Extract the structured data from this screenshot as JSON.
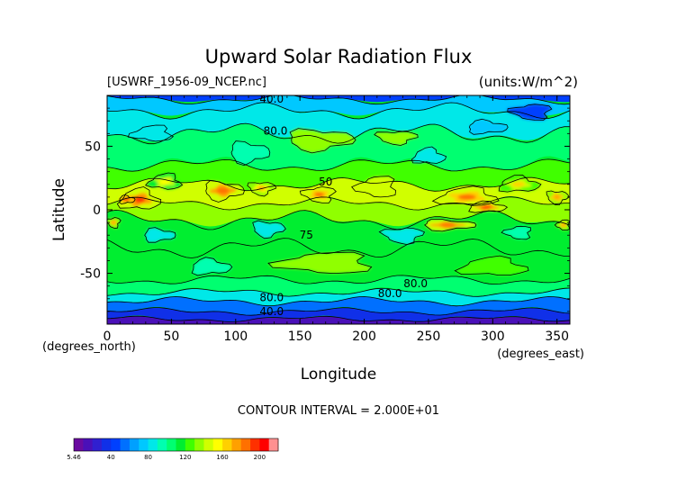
{
  "chart_data": {
    "type": "heatmap",
    "title": "Upward Solar Radiation Flux",
    "file_label": "[USWRF_1956-09_NCEP.nc]",
    "units_label": "(units:W/m^2)",
    "xlabel": "Longitude",
    "ylabel": "Latitude",
    "x_unit_label": "(degrees_east)",
    "y_unit_label": "(degrees_north)",
    "xlim": [
      0,
      360
    ],
    "ylim": [
      -90,
      90
    ],
    "x_ticks": [
      0,
      50,
      100,
      150,
      200,
      250,
      300,
      350
    ],
    "y_ticks": [
      -50,
      0,
      50
    ],
    "contour_interval_text": "CONTOUR INTERVAL = 2.000E+01",
    "contour_labels": [
      {
        "text": "40.0",
        "lon": 128,
        "lat": 87
      },
      {
        "text": "80.0",
        "lon": 131,
        "lat": 62
      },
      {
        "text": "50",
        "lon": 170,
        "lat": 22
      },
      {
        "text": "75",
        "lon": 155,
        "lat": -20
      },
      {
        "text": "80.0",
        "lon": 128,
        "lat": -69
      },
      {
        "text": "80.0",
        "lon": 220,
        "lat": -66
      },
      {
        "text": "80.0",
        "lon": 240,
        "lat": -58
      },
      {
        "text": "40.0",
        "lon": 128,
        "lat": -80
      }
    ],
    "colorbar": {
      "tick_labels": [
        "5.46",
        "40",
        "80",
        "120",
        "160",
        "200"
      ],
      "tick_values": [
        5.46,
        40,
        80,
        120,
        160,
        200
      ],
      "colors": [
        "#6a0aa0",
        "#4a10b8",
        "#3020d0",
        "#1030e8",
        "#0040ff",
        "#0070ff",
        "#00a0ff",
        "#00c8ff",
        "#00e8e8",
        "#00ffb0",
        "#00ff70",
        "#00ee30",
        "#40ff00",
        "#90ff00",
        "#d0ff00",
        "#ffff00",
        "#ffd000",
        "#ffa000",
        "#ff7000",
        "#ff3000",
        "#ff0000",
        "#ff9090"
      ]
    },
    "bands": [
      {
        "lat_from": 90,
        "lat_to": 87,
        "value": 40
      },
      {
        "lat_from": 87,
        "lat_to": 78,
        "value": 70
      },
      {
        "lat_from": 78,
        "lat_to": 60,
        "value": 85
      },
      {
        "lat_from": 60,
        "lat_to": 35,
        "value": 105
      },
      {
        "lat_from": 35,
        "lat_to": 20,
        "value": 120
      },
      {
        "lat_from": 20,
        "lat_to": 5,
        "value": 145
      },
      {
        "lat_from": 5,
        "lat_to": -8,
        "value": 135
      },
      {
        "lat_from": -8,
        "lat_to": -30,
        "value": 110
      },
      {
        "lat_from": -30,
        "lat_to": -55,
        "value": 115
      },
      {
        "lat_from": -55,
        "lat_to": -65,
        "value": 100
      },
      {
        "lat_from": -65,
        "lat_to": -72,
        "value": 80
      },
      {
        "lat_from": -72,
        "lat_to": -80,
        "value": 55
      },
      {
        "lat_from": -80,
        "lat_to": -86,
        "value": 30
      },
      {
        "lat_from": -86,
        "lat_to": -90,
        "value": 12
      }
    ],
    "blobs": [
      {
        "lon": 25,
        "lat": 8,
        "rlon": 15,
        "rlat": 8,
        "value": 190
      },
      {
        "lon": 15,
        "lat": 8,
        "rlon": 6,
        "rlat": 3,
        "value": 200
      },
      {
        "lon": 90,
        "lat": 15,
        "rlon": 15,
        "rlat": 7,
        "value": 185
      },
      {
        "lon": 120,
        "lat": 17,
        "rlon": 10,
        "rlat": 5,
        "value": 170
      },
      {
        "lon": 165,
        "lat": 12,
        "rlon": 12,
        "rlat": 6,
        "value": 180
      },
      {
        "lon": 210,
        "lat": 18,
        "rlon": 15,
        "rlat": 8,
        "value": 150
      },
      {
        "lon": 280,
        "lat": 10,
        "rlon": 22,
        "rlat": 7,
        "value": 180
      },
      {
        "lon": 295,
        "lat": 2,
        "rlon": 14,
        "rlat": 4,
        "value": 190
      },
      {
        "lon": 265,
        "lat": -12,
        "rlon": 20,
        "rlat": 4,
        "value": 185
      },
      {
        "lon": 350,
        "lat": 10,
        "rlon": 8,
        "rlat": 5,
        "value": 175
      },
      {
        "lon": 5,
        "lat": -10,
        "rlon": 5,
        "rlat": 4,
        "value": 175
      },
      {
        "lon": 355,
        "lat": -12,
        "rlon": 5,
        "rlat": 4,
        "value": 175
      },
      {
        "lon": 45,
        "lat": 22,
        "rlon": 12,
        "rlat": 6,
        "value": 155
      },
      {
        "lon": 320,
        "lat": 20,
        "rlon": 15,
        "rlat": 6,
        "value": 160
      },
      {
        "lon": 40,
        "lat": -20,
        "rlon": 12,
        "rlat": 5,
        "value": 85
      },
      {
        "lon": 125,
        "lat": -15,
        "rlon": 12,
        "rlat": 6,
        "value": 80
      },
      {
        "lon": 230,
        "lat": -20,
        "rlon": 15,
        "rlat": 6,
        "value": 85
      },
      {
        "lon": 320,
        "lat": -18,
        "rlon": 10,
        "rlat": 5,
        "value": 90
      },
      {
        "lon": 35,
        "lat": 60,
        "rlon": 15,
        "rlat": 6,
        "value": 80
      },
      {
        "lon": 250,
        "lat": 42,
        "rlon": 12,
        "rlat": 6,
        "value": 80
      },
      {
        "lon": 295,
        "lat": 65,
        "rlon": 15,
        "rlat": 5,
        "value": 70
      },
      {
        "lon": 165,
        "lat": 55,
        "rlon": 25,
        "rlat": 8,
        "value": 130
      },
      {
        "lon": 225,
        "lat": 57,
        "rlon": 15,
        "rlat": 5,
        "value": 130
      },
      {
        "lon": 330,
        "lat": 77,
        "rlon": 15,
        "rlat": 6,
        "value": 45
      },
      {
        "lon": 170,
        "lat": -42,
        "rlon": 35,
        "rlat": 8,
        "value": 130
      },
      {
        "lon": 300,
        "lat": -45,
        "rlon": 25,
        "rlat": 7,
        "value": 125
      },
      {
        "lon": 80,
        "lat": -45,
        "rlon": 15,
        "rlat": 6,
        "value": 95
      },
      {
        "lon": 110,
        "lat": 45,
        "rlon": 15,
        "rlat": 8,
        "value": 90
      }
    ]
  }
}
